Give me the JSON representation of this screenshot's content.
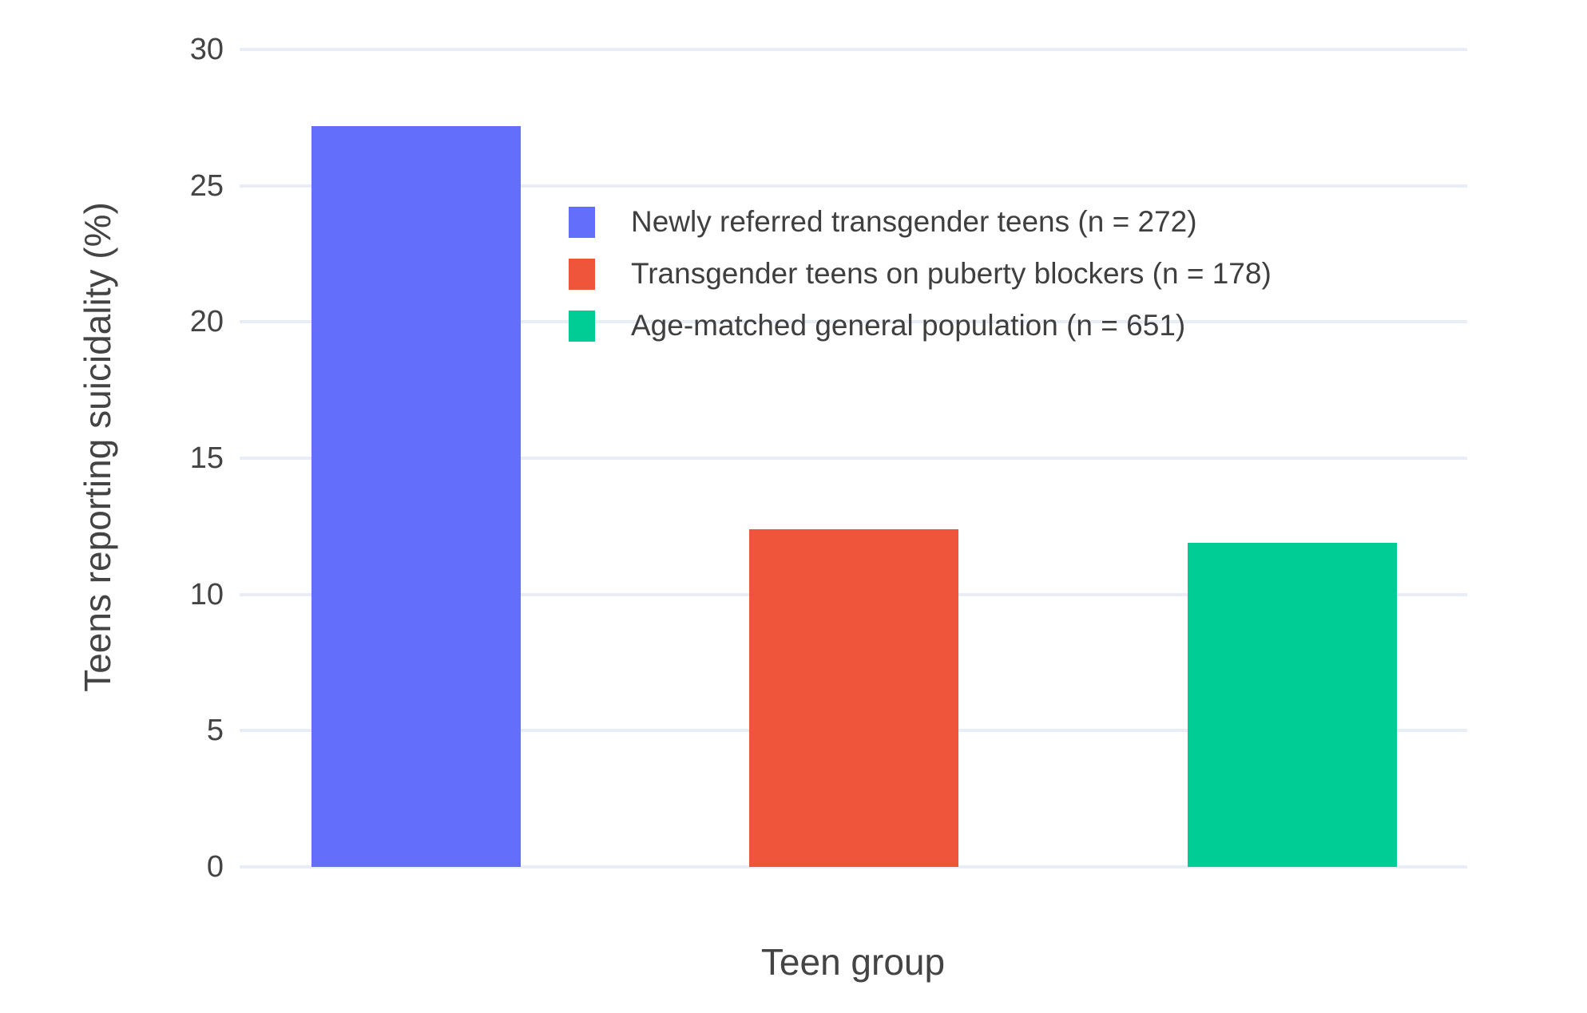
{
  "chart_data": {
    "type": "bar",
    "title": "",
    "xlabel": "Teen group",
    "ylabel": "Teens reporting suicidality (%)",
    "ylim": [
      0,
      30
    ],
    "yticks": [
      0,
      5,
      10,
      15,
      20,
      25,
      30
    ],
    "grid": true,
    "gridline_color": "#E9EEF6",
    "background_color": "#ffffff",
    "text_color": "#444444",
    "legend_position": "inside-top",
    "series": [
      {
        "name": "Newly referred transgender teens (n = 272)",
        "value": 27.2,
        "color": "#636EFA"
      },
      {
        "name": "Transgender teens on puberty blockers (n = 178)",
        "value": 12.4,
        "color": "#EF553B"
      },
      {
        "name": "Age-matched general population (n = 651)",
        "value": 11.9,
        "color": "#00CC96"
      }
    ]
  }
}
